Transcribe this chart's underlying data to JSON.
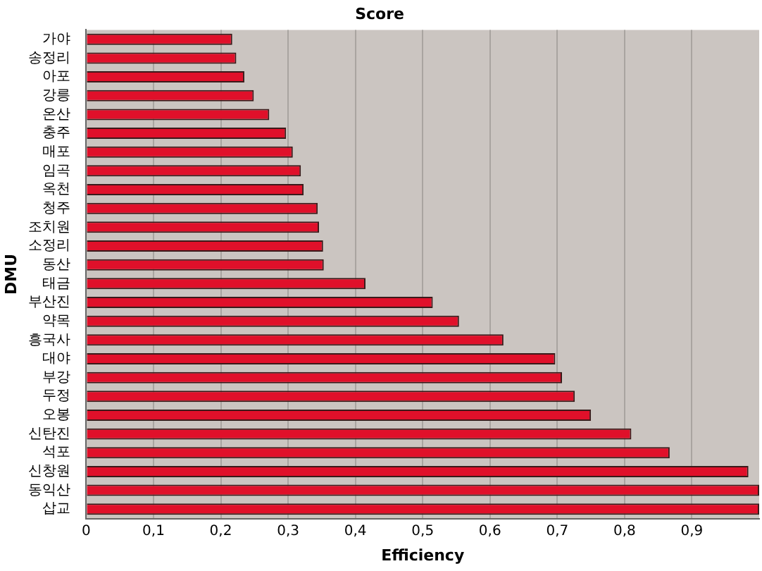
{
  "chart_data": {
    "type": "bar",
    "orientation": "horizontal",
    "title": "Score",
    "xlabel": "Efficiency",
    "ylabel": "DMU",
    "categories": [
      "가야",
      "송정리",
      "아포",
      "강릉",
      "온산",
      "충주",
      "매포",
      "임곡",
      "옥천",
      "청주",
      "조치원",
      "소정리",
      "동산",
      "태금",
      "부산진",
      "약목",
      "흥국사",
      "대야",
      "부강",
      "두정",
      "오봉",
      "신탄진",
      "석포",
      "신창원",
      "동익산",
      "삽교"
    ],
    "values": [
      0.217,
      0.223,
      0.235,
      0.249,
      0.272,
      0.297,
      0.307,
      0.319,
      0.323,
      0.344,
      0.346,
      0.352,
      0.353,
      0.415,
      0.515,
      0.554,
      0.62,
      0.697,
      0.707,
      0.726,
      0.75,
      0.81,
      0.867,
      0.984,
      1,
      1
    ],
    "color": "#e0102a",
    "xlim": [
      0,
      1
    ],
    "xticks": [
      0,
      {
        "value": 0.1,
        "label": "0,1"
      },
      {
        "value": 0.2,
        "label": "0,2"
      },
      {
        "value": 0.3,
        "label": "0,3"
      },
      {
        "value": 0.4,
        "label": "0,4"
      },
      {
        "value": 0.5,
        "label": "0,5"
      },
      {
        "value": 0.6,
        "label": "0,6"
      },
      {
        "value": 0.7,
        "label": "0,7"
      },
      {
        "value": 0.8,
        "label": "0,8"
      },
      {
        "value": 0.9,
        "label": "0,9"
      }
    ],
    "grid": "x",
    "legend": false
  }
}
